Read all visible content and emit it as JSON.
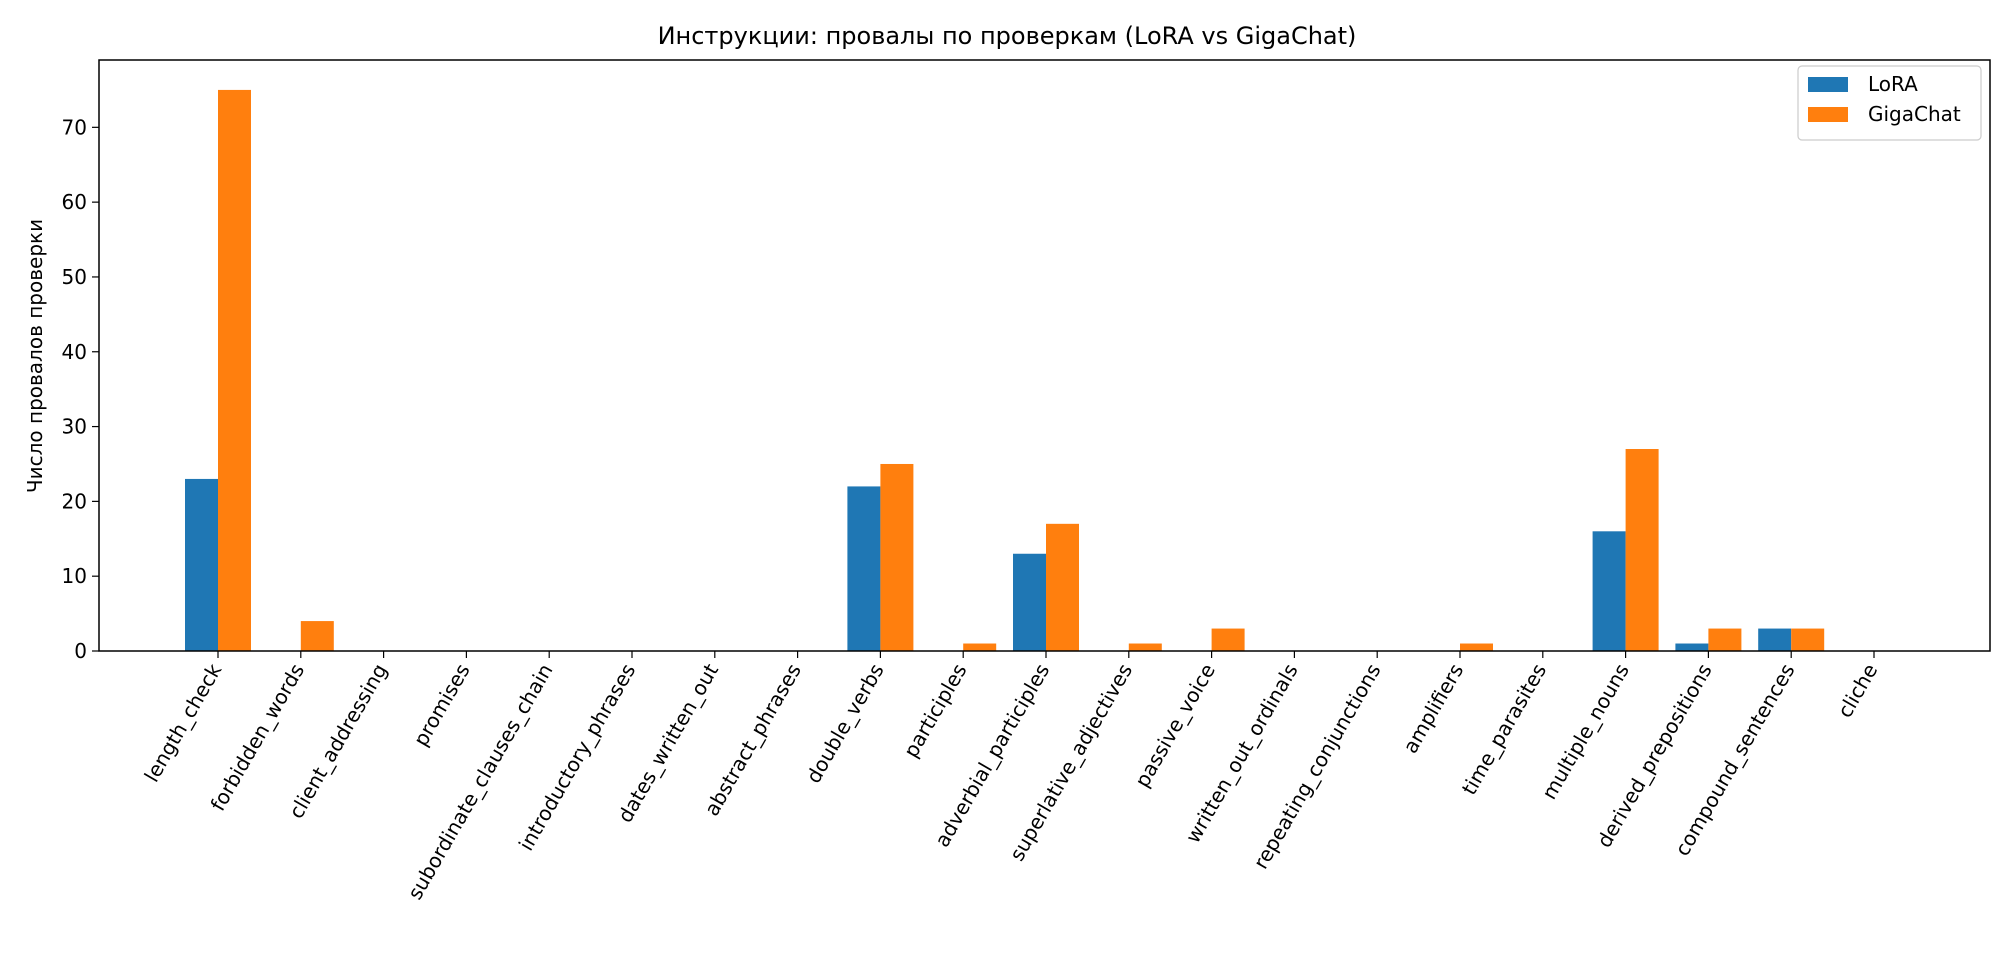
{
  "chart_data": {
    "type": "bar",
    "title": "Инструкции: провалы по проверкам (LoRA vs GigaChat)",
    "xlabel": "",
    "ylabel": "Число провалов проверки",
    "ylim": [
      0,
      79
    ],
    "yticks": [
      0,
      10,
      20,
      30,
      40,
      50,
      60,
      70
    ],
    "legend_placement": "top-right",
    "grid": false,
    "categories": [
      "length_check",
      "forbidden_words",
      "client_addressing",
      "promises",
      "subordinate_clauses_chain",
      "introductory_phrases",
      "dates_written_out",
      "abstract_phrases",
      "double_verbs",
      "participles",
      "adverbial_participles",
      "superlative_adjectives",
      "passive_voice",
      "written_out_ordinals",
      "repeating_conjunctions",
      "amplifiers",
      "time_parasites",
      "multiple_nouns",
      "derived_prepositions",
      "compound_sentences",
      "cliche"
    ],
    "series": [
      {
        "name": "LoRA",
        "color": "#1f77b4",
        "values": [
          23,
          0,
          0,
          0,
          0,
          0,
          0,
          0,
          22,
          0,
          13,
          0,
          0,
          0,
          0,
          0,
          0,
          16,
          1,
          3,
          0
        ]
      },
      {
        "name": "GigaChat",
        "color": "#ff7f0e",
        "values": [
          75,
          4,
          0,
          0,
          0,
          0,
          0,
          0,
          25,
          1,
          17,
          1,
          3,
          0,
          0,
          1,
          0,
          27,
          3,
          3,
          0
        ]
      }
    ]
  }
}
